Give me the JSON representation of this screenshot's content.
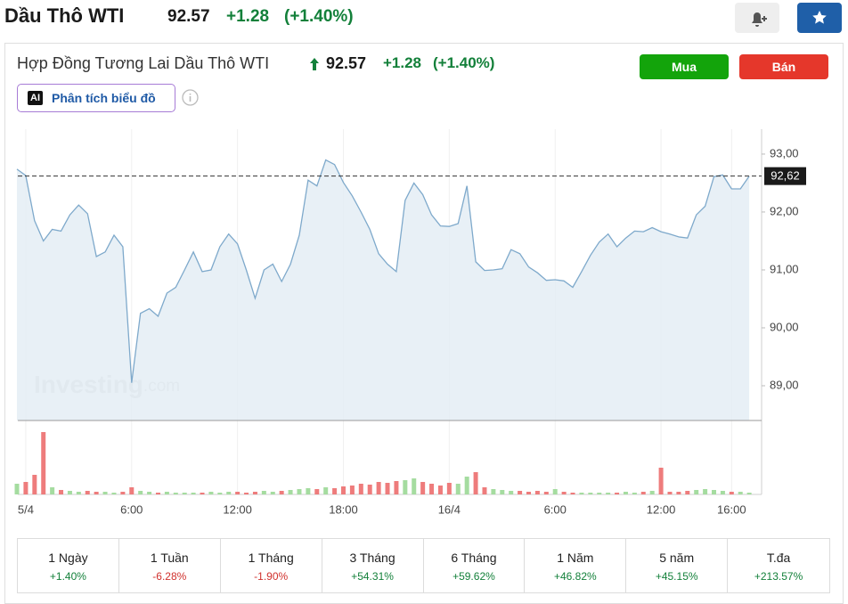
{
  "header": {
    "title": "Dầu Thô WTI",
    "price": "92.57",
    "change": "+1.28",
    "change_pct": "(+1.40%)"
  },
  "instrument": {
    "name": "Hợp Đồng Tương Lai Dầu Thô WTI",
    "price": "92.57",
    "change": "+1.28",
    "change_pct": "(+1.40%)"
  },
  "actions": {
    "buy": "Mua",
    "sell": "Bán",
    "ai_badge": "AI",
    "ai_analysis": "Phân tích biểu đồ"
  },
  "chart_data": {
    "type": "area",
    "watermark_brand": "Investing",
    "watermark_suffix": ".com",
    "color": "#7ea9cb",
    "fill_color": "#e4edf5",
    "x": [
      -0.5,
      0,
      0.5,
      1,
      1.5,
      2,
      2.5,
      3,
      3.5,
      4,
      4.5,
      5,
      5.5,
      6,
      6.5,
      7,
      7.5,
      8,
      8.5,
      9,
      9.5,
      10,
      10.5,
      11,
      11.5,
      12,
      12.5,
      13,
      13.5,
      14,
      14.5,
      15,
      15.5,
      16,
      16.5,
      17,
      17.5,
      18,
      18.5,
      19,
      19.5,
      20,
      20.5,
      21,
      21.5,
      22,
      22.5,
      23,
      23.5,
      24,
      24.5,
      25,
      25.5,
      26,
      26.5,
      27,
      27.5,
      28,
      28.5,
      29,
      29.5,
      30,
      30.5,
      31,
      31.5,
      32,
      32.5,
      33,
      33.5,
      34,
      34.5,
      35,
      35.5,
      36,
      36.5,
      37,
      37.5,
      38,
      38.5,
      39,
      39.5,
      40,
      40.5,
      41
    ],
    "values": [
      92.74,
      92.63,
      91.85,
      91.5,
      91.7,
      91.67,
      91.95,
      92.12,
      91.97,
      91.23,
      91.31,
      91.6,
      91.4,
      89.05,
      90.25,
      90.33,
      90.2,
      90.6,
      90.7,
      91.0,
      91.31,
      90.97,
      91.0,
      91.4,
      91.62,
      91.45,
      91.0,
      90.51,
      91.0,
      91.1,
      90.8,
      91.1,
      91.6,
      92.55,
      92.45,
      92.9,
      92.82,
      92.51,
      92.28,
      92.0,
      91.7,
      91.28,
      91.1,
      90.97,
      92.2,
      92.5,
      92.3,
      91.95,
      91.76,
      91.75,
      91.8,
      92.45,
      91.14,
      90.99,
      91.0,
      91.02,
      91.35,
      91.28,
      91.05,
      90.95,
      90.82,
      90.83,
      90.81,
      90.7,
      90.97,
      91.25,
      91.48,
      91.62,
      91.4,
      91.55,
      91.67,
      91.66,
      91.73,
      91.66,
      91.62,
      91.57,
      91.55,
      91.95,
      92.1,
      92.61,
      92.64,
      92.4,
      92.4,
      92.62
    ],
    "xlim": [
      -0.45,
      41.7
    ],
    "xticks": [
      {
        "value": 0,
        "label": "5/4"
      },
      {
        "value": 6,
        "label": "6:00"
      },
      {
        "value": 12,
        "label": "12:00"
      },
      {
        "value": 18,
        "label": "18:00"
      },
      {
        "value": 24,
        "label": "16/4"
      },
      {
        "value": 30,
        "label": "6:00"
      },
      {
        "value": 36,
        "label": "12:00"
      },
      {
        "value": 40,
        "label": "16:00"
      }
    ],
    "ylim": [
      88.4,
      93.43
    ],
    "yticks": [
      {
        "value": 93,
        "label": "93,00"
      },
      {
        "value": 92,
        "label": "92,00"
      },
      {
        "value": 91,
        "label": "91,00"
      },
      {
        "value": 90,
        "label": "90,00"
      },
      {
        "value": 89,
        "label": "89,00"
      }
    ],
    "last_price": {
      "value": 92.62,
      "label": "92,62"
    },
    "volume": {
      "type": "bar",
      "up_color": "#a5dca0",
      "down_color": "#ee7c7c",
      "ylim": [
        0,
        75
      ],
      "values": [
        12,
        14,
        22,
        70,
        8,
        5,
        4,
        3,
        4,
        3,
        3,
        2,
        3,
        8,
        4,
        3,
        2,
        3,
        2,
        2,
        2,
        2,
        3,
        2,
        3,
        3,
        2,
        3,
        4,
        3,
        4,
        5,
        6,
        7,
        6,
        8,
        7,
        9,
        10,
        12,
        11,
        14,
        13,
        15,
        16,
        18,
        14,
        12,
        10,
        13,
        12,
        20,
        25,
        8,
        6,
        5,
        4,
        4,
        3,
        4,
        3,
        6,
        3,
        2,
        2,
        2,
        2,
        2,
        2,
        3,
        2,
        3,
        4,
        30,
        3,
        3,
        4,
        5,
        6,
        5,
        4,
        3,
        3,
        2
      ]
    }
  },
  "performance": [
    {
      "period": "1 Ngày",
      "change": "+1.40%"
    },
    {
      "period": "1 Tuần",
      "change": "-6.28%"
    },
    {
      "period": "1 Tháng",
      "change": "-1.90%"
    },
    {
      "period": "3 Tháng",
      "change": "+54.31%"
    },
    {
      "period": "6 Tháng",
      "change": "+59.62%"
    },
    {
      "period": "1 Năm",
      "change": "+46.82%"
    },
    {
      "period": "5 năm",
      "change": "+45.15%"
    },
    {
      "period": "T.đa",
      "change": "+213.57%"
    }
  ]
}
